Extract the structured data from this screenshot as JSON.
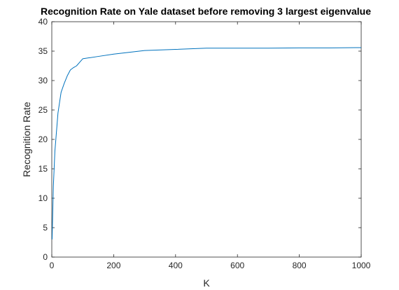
{
  "chart_data": {
    "type": "line",
    "title": "Recognition Rate on Yale dataset before removing 3 largest eigenvalue",
    "xlabel": "K",
    "ylabel": "Recognition Rate",
    "xlim": [
      0,
      1000
    ],
    "ylim": [
      0,
      40
    ],
    "xticks": [
      0,
      200,
      400,
      600,
      800,
      1000
    ],
    "yticks": [
      0,
      5,
      10,
      15,
      20,
      25,
      30,
      35,
      40
    ],
    "grid": false,
    "line_color": "#0072BD",
    "series": [
      {
        "x": [
          1,
          5,
          10,
          20,
          30,
          40,
          50,
          60,
          70,
          80,
          90,
          100,
          150,
          200,
          300,
          400,
          500,
          600,
          700,
          800,
          900,
          1000
        ],
        "y": [
          3.0,
          12.0,
          18.0,
          24.5,
          28.0,
          29.5,
          30.8,
          31.8,
          32.2,
          32.5,
          33.1,
          33.7,
          34.1,
          34.5,
          35.1,
          35.3,
          35.5,
          35.5,
          35.5,
          35.55,
          35.55,
          35.6
        ]
      }
    ]
  }
}
